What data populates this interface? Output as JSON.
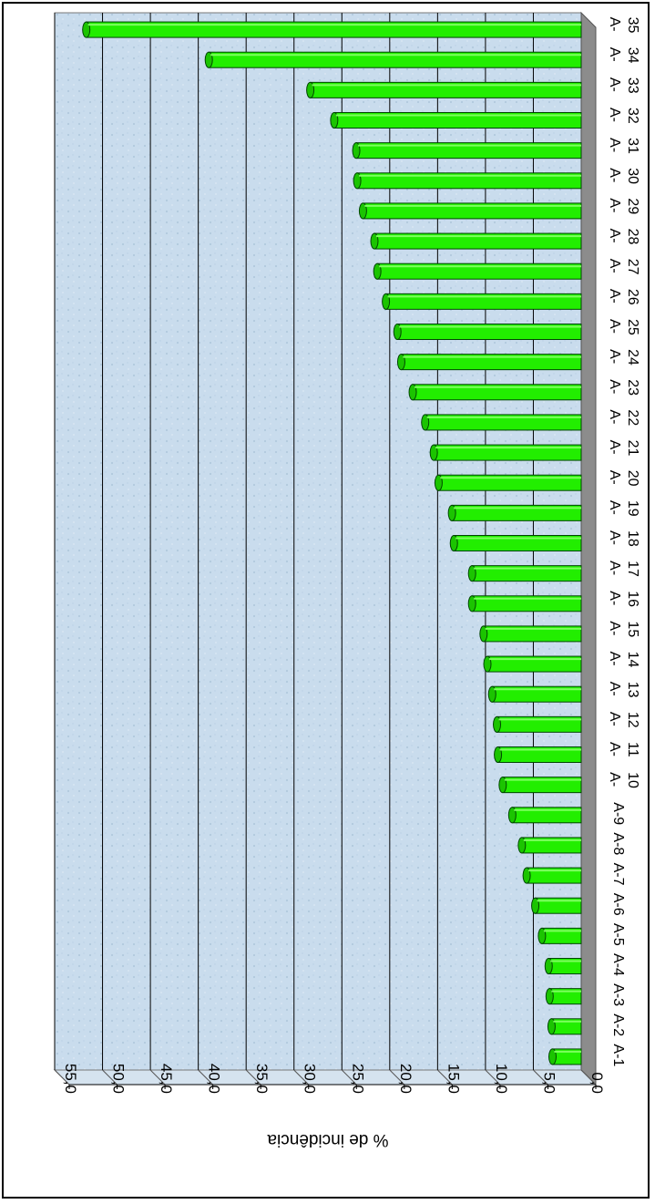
{
  "chart_data": {
    "type": "bar",
    "orientation": "horizontal-3d",
    "ylabel": "% de incidência",
    "xlim": [
      0,
      55
    ],
    "ticks": [
      "0,0",
      "5,0",
      "10,0",
      "15,0",
      "20,0",
      "25,0",
      "30,0",
      "35,0",
      "40,0",
      "45,0",
      "50,0",
      "55,0"
    ],
    "categories": [
      [
        "A-1"
      ],
      [
        "A-2"
      ],
      [
        "A-3"
      ],
      [
        "A-4"
      ],
      [
        "A-5"
      ],
      [
        "A-6"
      ],
      [
        "A-7"
      ],
      [
        "A-8"
      ],
      [
        "A-9"
      ],
      [
        "A-",
        "10"
      ],
      [
        "A-",
        "11"
      ],
      [
        "A-",
        "12"
      ],
      [
        "A-",
        "13"
      ],
      [
        "A-",
        "14"
      ],
      [
        "A-",
        "15"
      ],
      [
        "A-",
        "16"
      ],
      [
        "A-",
        "17"
      ],
      [
        "A-",
        "18"
      ],
      [
        "A-",
        "19"
      ],
      [
        "A-",
        "20"
      ],
      [
        "A-",
        "21"
      ],
      [
        "A-",
        "22"
      ],
      [
        "A-",
        "23"
      ],
      [
        "A-",
        "24"
      ],
      [
        "A-",
        "25"
      ],
      [
        "A-",
        "26"
      ],
      [
        "A-",
        "27"
      ],
      [
        "A-",
        "28"
      ],
      [
        "A-",
        "29"
      ],
      [
        "A-",
        "30"
      ],
      [
        "A-",
        "31"
      ],
      [
        "A-",
        "32"
      ],
      [
        "A-",
        "33"
      ],
      [
        "A-",
        "34"
      ],
      [
        "A-",
        "35"
      ]
    ],
    "values": [
      3.0,
      3.1,
      3.3,
      3.4,
      4.1,
      4.8,
      5.7,
      6.2,
      7.2,
      8.2,
      8.7,
      8.8,
      9.3,
      9.8,
      10.2,
      11.4,
      11.4,
      13.3,
      13.5,
      14.9,
      15.4,
      16.3,
      17.6,
      18.8,
      19.2,
      20.4,
      21.3,
      21.6,
      22.8,
      23.4,
      23.5,
      25.8,
      28.3,
      38.9,
      51.7
    ],
    "grid": true,
    "bar_color": "#22ee00",
    "bar_edge_color": "#004400",
    "wall_color": "#c8dcec",
    "legend": "none"
  }
}
